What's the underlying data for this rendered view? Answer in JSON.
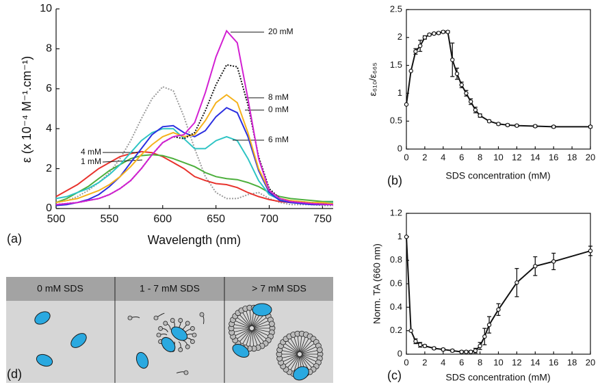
{
  "chart_data": [
    {
      "type": "line",
      "panel_label": "(a)",
      "xlabel": "Wavelength (nm)",
      "ylabel": "ε (x 10⁻⁴ M⁻¹.cm⁻¹)",
      "xlim": [
        500,
        760
      ],
      "ylim": [
        0,
        10
      ],
      "xticks": [
        500,
        550,
        600,
        650,
        700,
        750
      ],
      "yticks": [
        0,
        2,
        4,
        6,
        8,
        10
      ],
      "x": [
        500,
        510,
        520,
        530,
        540,
        550,
        560,
        570,
        580,
        590,
        600,
        610,
        620,
        630,
        640,
        650,
        660,
        670,
        680,
        690,
        700,
        710,
        720,
        730,
        740,
        750,
        760
      ],
      "series": [
        {
          "color": "#9a9a9a",
          "style": "dotted",
          "values": [
            0.3,
            0.4,
            0.6,
            0.9,
            1.3,
            1.8,
            2.5,
            3.4,
            4.5,
            5.5,
            6.1,
            5.9,
            4.6,
            3.0,
            1.6,
            0.8,
            0.5,
            0.5,
            0.7,
            0.8,
            0.5,
            0.3,
            0.2,
            0.2,
            0.2,
            0.15,
            0.15
          ]
        },
        {
          "name": "4 mM",
          "color": "#e8322c",
          "style": "solid",
          "values": [
            0.6,
            0.9,
            1.2,
            1.6,
            2.0,
            2.3,
            2.6,
            2.75,
            2.85,
            2.8,
            2.6,
            2.3,
            2.0,
            1.6,
            1.4,
            1.25,
            1.2,
            1.05,
            0.8,
            0.6,
            0.45,
            0.35,
            0.3,
            0.3,
            0.25,
            0.25,
            0.2
          ]
        },
        {
          "name": "1 mM",
          "color": "#4caf3c",
          "style": "solid",
          "values": [
            0.3,
            0.5,
            0.8,
            1.1,
            1.5,
            1.9,
            2.2,
            2.5,
            2.65,
            2.7,
            2.65,
            2.5,
            2.3,
            2.1,
            1.8,
            1.6,
            1.5,
            1.45,
            1.3,
            1.1,
            0.8,
            0.6,
            0.5,
            0.45,
            0.4,
            0.35,
            0.35
          ]
        },
        {
          "name": "6 mM",
          "color": "#2ec4c4",
          "style": "solid",
          "values": [
            0.5,
            0.6,
            0.8,
            1.0,
            1.3,
            1.7,
            2.2,
            2.8,
            3.4,
            3.8,
            4.0,
            4.0,
            3.5,
            3.0,
            3.0,
            3.4,
            3.6,
            3.4,
            2.5,
            1.4,
            0.7,
            0.45,
            0.35,
            0.3,
            0.3,
            0.3,
            0.3
          ]
        },
        {
          "name": "0 mM",
          "color": "#2b2fe0",
          "style": "solid",
          "values": [
            0.15,
            0.2,
            0.3,
            0.45,
            0.7,
            1.1,
            1.6,
            2.3,
            3.0,
            3.7,
            4.1,
            4.15,
            3.8,
            3.6,
            3.9,
            4.6,
            5.05,
            4.8,
            3.6,
            1.9,
            0.8,
            0.4,
            0.3,
            0.25,
            0.2,
            0.2,
            0.2
          ]
        },
        {
          "name": "8 mM",
          "color": "#f5b21b",
          "style": "solid",
          "values": [
            0.3,
            0.4,
            0.5,
            0.7,
            0.9,
            1.2,
            1.6,
            2.1,
            2.7,
            3.2,
            3.6,
            3.8,
            3.6,
            3.7,
            4.4,
            5.3,
            5.7,
            5.3,
            3.8,
            2.0,
            0.9,
            0.5,
            0.4,
            0.35,
            0.3,
            0.3,
            0.25
          ]
        },
        {
          "color": "#111111",
          "style": "dotted",
          "values": [
            0.2,
            0.25,
            0.3,
            0.4,
            0.5,
            0.7,
            1.0,
            1.4,
            2.0,
            2.7,
            3.3,
            3.6,
            3.5,
            3.8,
            4.9,
            6.2,
            7.2,
            7.1,
            5.2,
            2.6,
            1.0,
            0.5,
            0.35,
            0.3,
            0.25,
            0.22,
            0.2
          ]
        },
        {
          "name": "20 mM",
          "color": "#d21fd2",
          "style": "solid",
          "values": [
            0.2,
            0.25,
            0.3,
            0.4,
            0.5,
            0.7,
            1.0,
            1.4,
            2.0,
            2.7,
            3.3,
            3.6,
            3.7,
            4.3,
            5.8,
            7.6,
            8.9,
            8.3,
            5.5,
            2.5,
            0.9,
            0.5,
            0.35,
            0.3,
            0.25,
            0.22,
            0.2
          ]
        }
      ]
    },
    {
      "type": "errorline",
      "panel_label": "(b)",
      "xlabel": "SDS concentration (mM)",
      "ylabel": "ε₆₁₀/ε₆₆₅",
      "xlim": [
        0,
        20
      ],
      "ylim": [
        0,
        2.5
      ],
      "xticks": [
        0,
        2,
        4,
        6,
        8,
        10,
        12,
        14,
        16,
        18,
        20
      ],
      "yticks": [
        0,
        0.5,
        1,
        1.5,
        2,
        2.5
      ],
      "x": [
        0,
        0.5,
        1,
        1.5,
        2,
        2.5,
        3,
        3.5,
        4,
        4.5,
        5,
        5.5,
        6,
        6.5,
        7,
        7.5,
        8,
        9,
        10,
        11,
        12,
        14,
        16,
        20
      ],
      "values": [
        0.8,
        1.4,
        1.75,
        1.85,
        2.0,
        2.05,
        2.07,
        2.08,
        2.1,
        2.1,
        1.6,
        1.35,
        1.15,
        1.0,
        0.85,
        0.7,
        0.6,
        0.5,
        0.45,
        0.43,
        0.42,
        0.41,
        0.4,
        0.4
      ],
      "errors": [
        0,
        0,
        0.05,
        0.1,
        0.03,
        0.02,
        0.02,
        0.02,
        0.02,
        0.02,
        0.3,
        0.1,
        0.05,
        0.05,
        0.05,
        0.05,
        0.03,
        0.02,
        0.02,
        0.02,
        0.02,
        0.02,
        0.02,
        0.02
      ],
      "color": "#111111"
    },
    {
      "type": "errorline",
      "panel_label": "(c)",
      "xlabel": "SDS concentration (mM)",
      "ylabel": "Norm. TA (660 nm)",
      "xlim": [
        0,
        20
      ],
      "ylim": [
        0,
        1.2
      ],
      "xticks": [
        0,
        2,
        4,
        6,
        8,
        10,
        12,
        14,
        16,
        18,
        20
      ],
      "yticks": [
        0,
        0.2,
        0.4,
        0.6,
        0.8,
        1,
        1.2
      ],
      "x": [
        0,
        0.5,
        1,
        1.5,
        2,
        3,
        4,
        5,
        6,
        6.5,
        7,
        7.5,
        8,
        8.5,
        9,
        10,
        12,
        14,
        16,
        20
      ],
      "values": [
        1.0,
        0.2,
        0.11,
        0.08,
        0.07,
        0.05,
        0.04,
        0.03,
        0.02,
        0.02,
        0.02,
        0.03,
        0.07,
        0.15,
        0.25,
        0.38,
        0.61,
        0.75,
        0.79,
        0.88
      ],
      "errors": [
        0,
        0,
        0.02,
        0.02,
        0.01,
        0.01,
        0.01,
        0.01,
        0.01,
        0.01,
        0.01,
        0.02,
        0.03,
        0.07,
        0.07,
        0.05,
        0.12,
        0.08,
        0.07,
        0.04
      ],
      "color": "#111111"
    }
  ],
  "diagram": {
    "panel_label": "(d)",
    "panels": [
      "0 mM SDS",
      "1 - 7 mM SDS",
      "> 7 mM SDS"
    ]
  }
}
